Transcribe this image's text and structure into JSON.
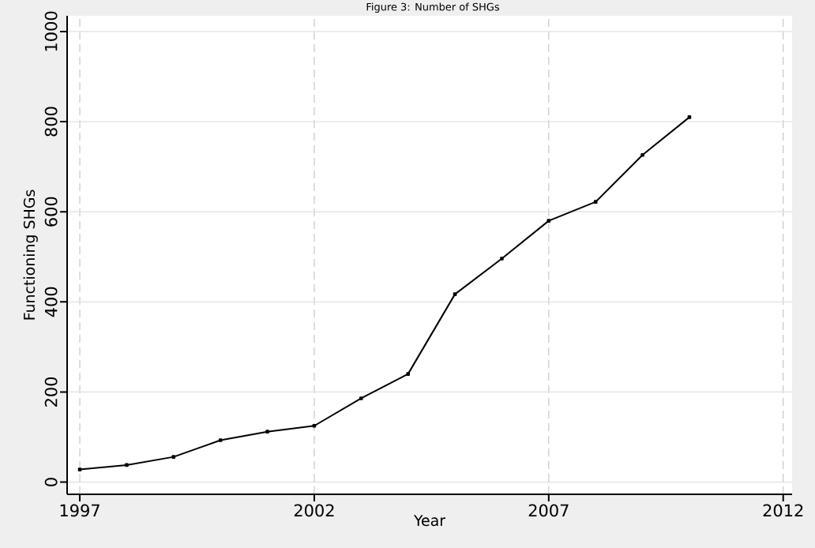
{
  "chart_data": {
    "type": "line",
    "title": "Figure 3: Number of SHGs",
    "xlabel": "Year",
    "ylabel": "Functioning SHGs",
    "x": [
      1997,
      1998,
      1999,
      2000,
      2001,
      2002,
      2003,
      2004,
      2005,
      2006,
      2007,
      2008,
      2009,
      2010
    ],
    "series": [
      {
        "color": "#000000",
        "values": [
          28,
          38,
          56,
          93,
          112,
          125,
          186,
          240,
          417,
          496,
          580,
          622,
          726,
          810
        ]
      }
    ],
    "xlim": [
      1996.73,
      2012.19
    ],
    "ylim": [
      -27,
      1035
    ],
    "xticks": [
      1997,
      2002,
      2007,
      2012
    ],
    "yticks": [
      0,
      200,
      400,
      600,
      800,
      1000
    ],
    "grid": true,
    "marker": "square",
    "line_style": "solid"
  }
}
